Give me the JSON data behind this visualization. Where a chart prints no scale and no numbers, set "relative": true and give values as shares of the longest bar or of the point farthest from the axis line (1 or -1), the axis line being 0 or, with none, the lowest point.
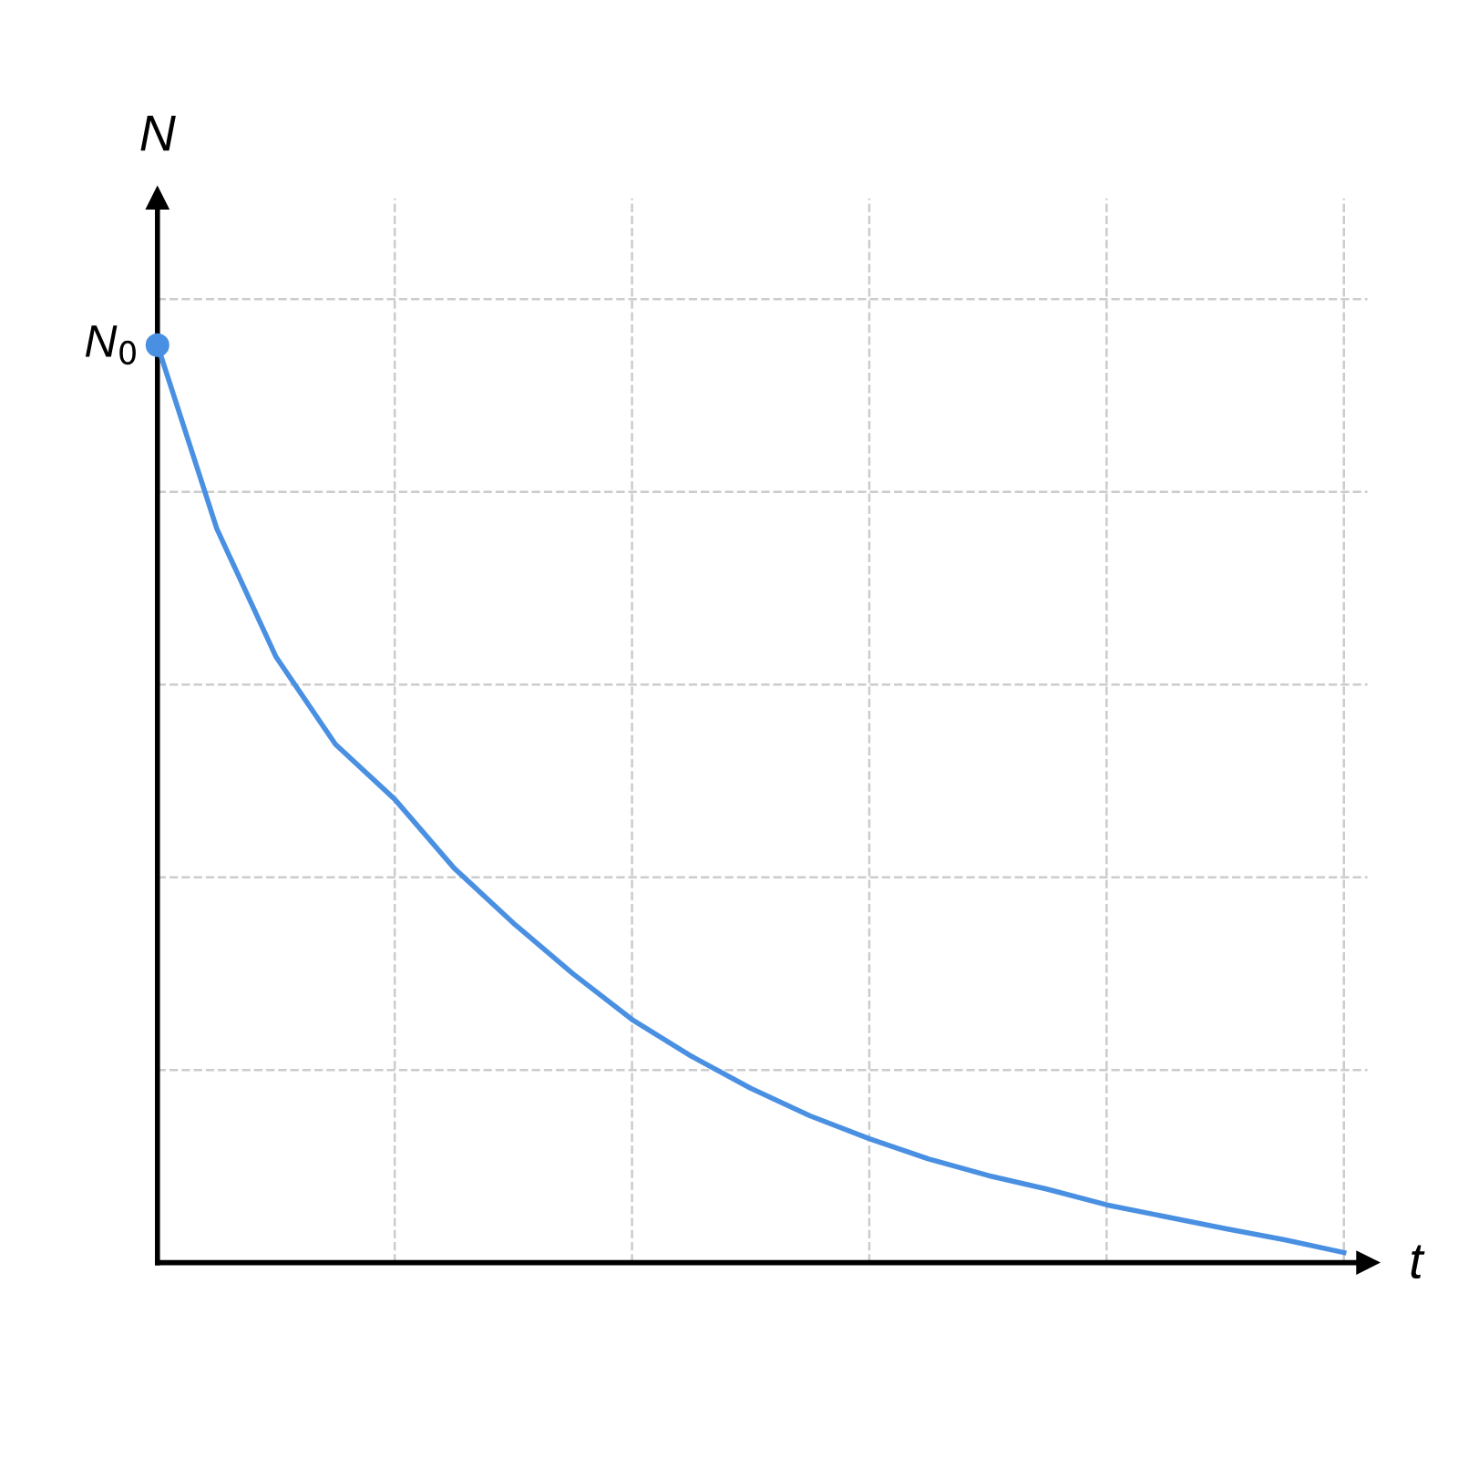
{
  "chart_data": {
    "type": "line",
    "relative": true,
    "xlabel": "t",
    "ylabel": "N",
    "categories": [
      null,
      null,
      null,
      null,
      null,
      null,
      null,
      null,
      null,
      null,
      null,
      null,
      null,
      null,
      null,
      null,
      null,
      null,
      null,
      null,
      null
    ],
    "series": [
      {
        "color": "#4a90e2",
        "values": [
          1.0,
          0.8,
          0.66,
          0.565,
          0.505,
          0.43,
          0.37,
          0.315,
          0.265,
          0.225,
          0.19,
          0.16,
          0.135,
          0.113,
          0.095,
          0.08,
          0.063,
          0.05,
          0.037,
          0.025,
          0.011
        ]
      }
    ],
    "annotations": [
      "N$_{0}$"
    ],
    "grid": true,
    "marker": "none",
    "line_style": "solid",
    "legend": false
  }
}
